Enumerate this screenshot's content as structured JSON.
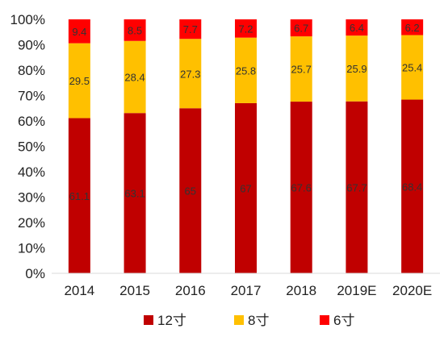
{
  "chart_data": {
    "type": "bar",
    "stacked": true,
    "percent_stacked": true,
    "categories": [
      "2014",
      "2015",
      "2016",
      "2017",
      "2018",
      "2019E",
      "2020E"
    ],
    "series": [
      {
        "name": "12寸",
        "color": "#C00000",
        "values": [
          61.1,
          63.1,
          65,
          67,
          67.6,
          67.7,
          68.4
        ]
      },
      {
        "name": "8寸",
        "color": "#FFC000",
        "values": [
          29.5,
          28.4,
          27.3,
          25.8,
          25.7,
          25.9,
          25.4
        ]
      },
      {
        "name": "6寸",
        "color": "#FF0000",
        "values": [
          9.4,
          8.5,
          7.7,
          7.2,
          6.7,
          6.4,
          6.2
        ]
      }
    ],
    "data_labels": [
      [
        "61.1",
        "63.1",
        "65",
        "67",
        "67.6",
        "67.7",
        "68.4"
      ],
      [
        "29.5",
        "28.4",
        "27.3",
        "25.8",
        "25.7",
        "25.9",
        "25.4"
      ],
      [
        "9.4",
        "8.5",
        "7.7",
        "7.2",
        "6.7",
        "6.4",
        "6.2"
      ]
    ],
    "ylim": [
      0,
      100
    ],
    "yticks": [
      "0%",
      "10%",
      "20%",
      "30%",
      "40%",
      "50%",
      "60%",
      "70%",
      "80%",
      "90%",
      "100%"
    ],
    "grid": false,
    "legend_position": "bottom",
    "title": "",
    "xlabel": "",
    "ylabel": ""
  }
}
